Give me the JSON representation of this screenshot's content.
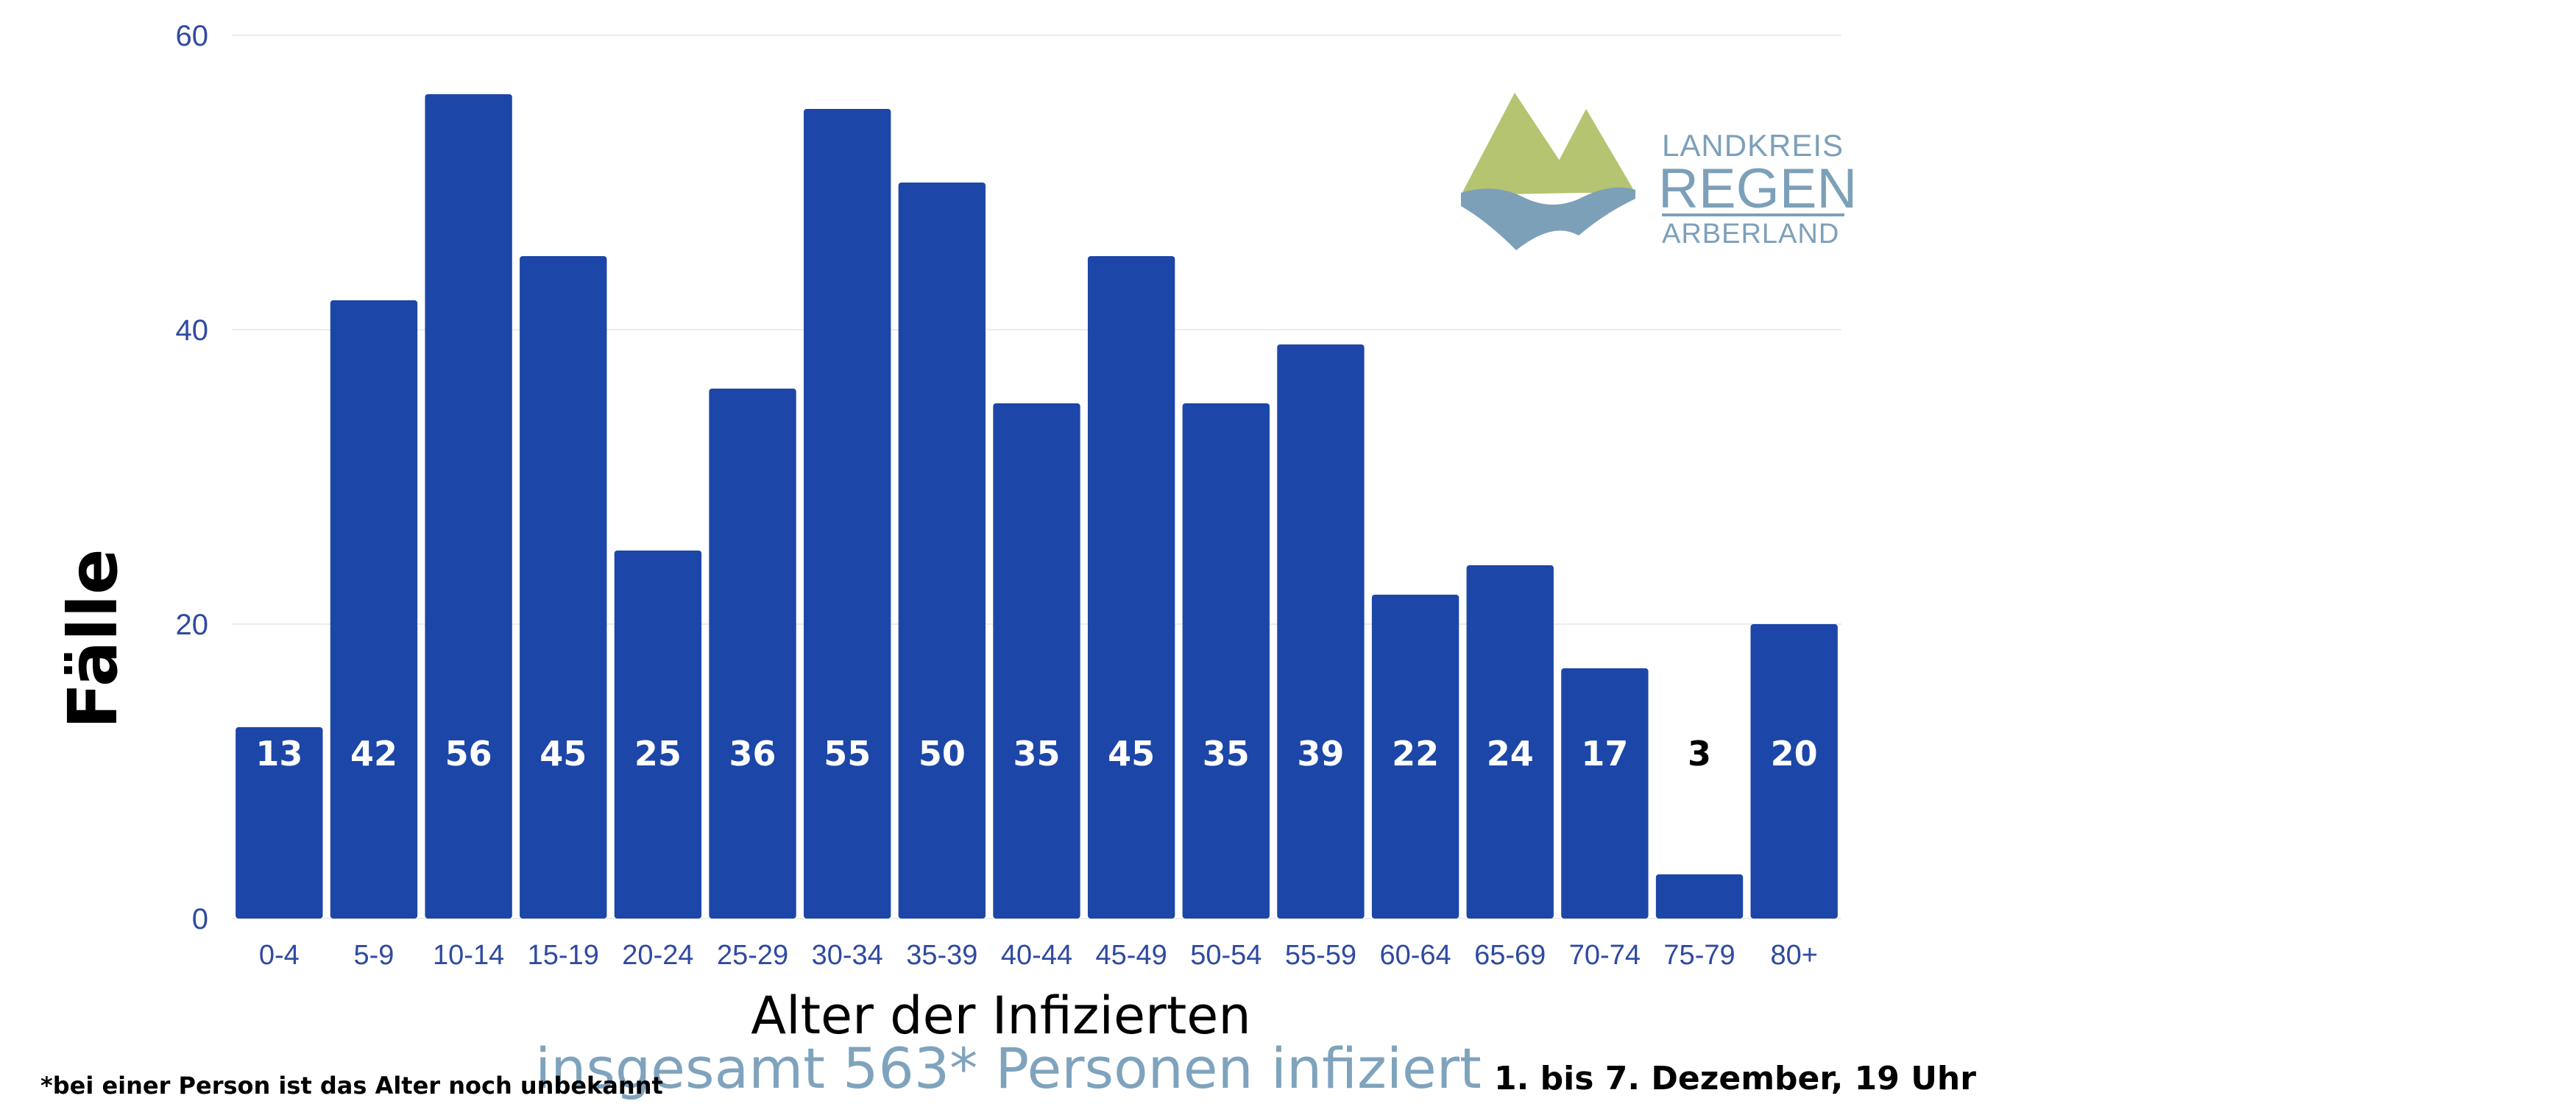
{
  "chart_data": {
    "type": "bar",
    "categories": [
      "0-4",
      "5-9",
      "10-14",
      "15-19",
      "20-24",
      "25-29",
      "30-34",
      "35-39",
      "40-44",
      "45-49",
      "50-54",
      "55-59",
      "60-64",
      "65-69",
      "70-74",
      "75-79",
      "80+"
    ],
    "values": [
      13,
      42,
      56,
      45,
      25,
      36,
      55,
      50,
      35,
      45,
      35,
      39,
      22,
      24,
      17,
      3,
      20
    ],
    "data_labels": [
      "13",
      "42",
      "56",
      "45",
      "25",
      "36",
      "55",
      "50",
      "35",
      "45",
      "35",
      "39",
      "22",
      "24",
      "17",
      "3",
      "20"
    ],
    "ylabel": "Fälle",
    "xlabel": "Alter der Infizierten",
    "ylim": [
      0,
      60
    ],
    "yticks": [
      "0",
      "20",
      "40",
      "60"
    ],
    "grid": true,
    "bar_color": "#1c46a8",
    "grid_color": "#ececec",
    "label_colors": {
      "inside": "#ffffff",
      "outside": "#000000"
    }
  },
  "total_text": "insgesamt 563* Personen infiziert",
  "footnote": "*bei einer Person ist das Alter noch unbekannt",
  "date_text": "1. bis 7. Dezember, 19 Uhr",
  "logo": {
    "line1": "LANDKREIS",
    "line2": "REGEN",
    "line3": "ARBERLAND",
    "mountain_color": "#b4c470",
    "water_color": "#7da0b9"
  }
}
